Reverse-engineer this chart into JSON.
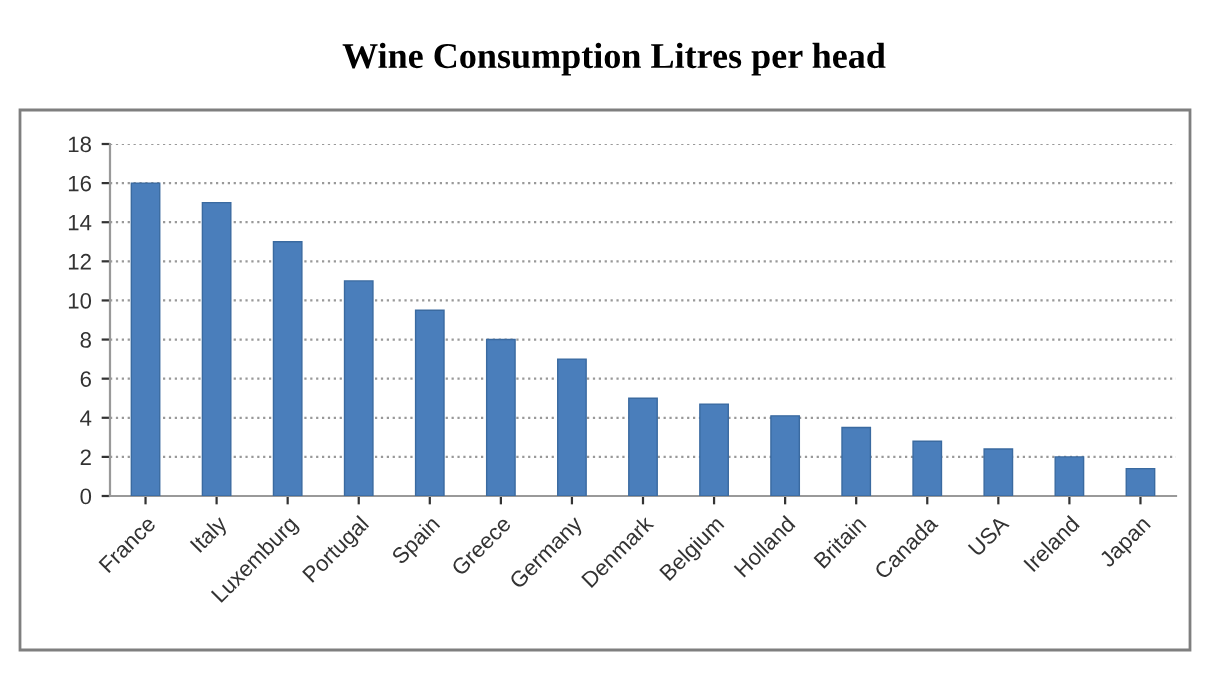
{
  "chart_data": {
    "type": "bar",
    "title": "Wine Consumption Litres per head",
    "categories": [
      "France",
      "Italy",
      "Luxemburg",
      "Portugal",
      "Spain",
      "Greece",
      "Germany",
      "Denmark",
      "Belgium",
      "Holland",
      "Britain",
      "Canada",
      "USA",
      "Ireland",
      "Japan"
    ],
    "values": [
      16,
      15,
      13,
      11,
      9.5,
      8,
      7,
      5.0,
      4.7,
      4.1,
      3.5,
      2.8,
      2.4,
      2.0,
      1.4
    ],
    "color": "#4a7ebb",
    "ylim": [
      0,
      18
    ],
    "yticks": [
      0,
      2,
      4,
      6,
      8,
      10,
      12,
      14,
      16,
      18
    ],
    "grid": "y",
    "legend": false
  }
}
